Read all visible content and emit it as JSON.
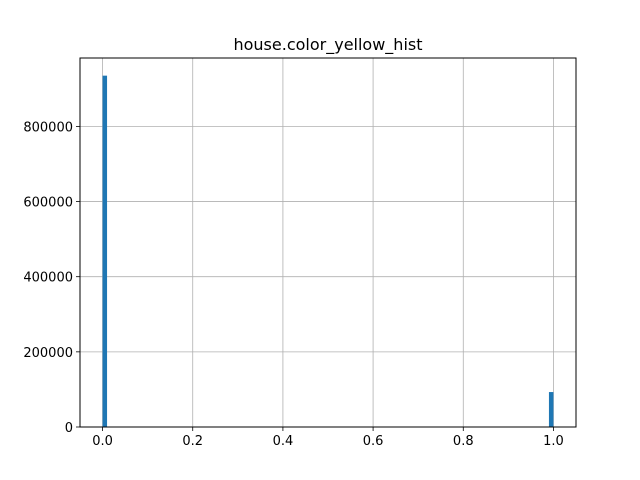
{
  "chart_data": {
    "type": "bar",
    "title": "house.color_yellow_hist",
    "xlabel": "",
    "ylabel": "",
    "xlim": [
      -0.05,
      1.05
    ],
    "ylim": [
      0,
      982000
    ],
    "x_ticks": [
      0.0,
      0.2,
      0.4,
      0.6,
      0.8,
      1.0
    ],
    "x_tick_labels": [
      "0.0",
      "0.2",
      "0.4",
      "0.6",
      "0.8",
      "1.0"
    ],
    "y_ticks": [
      0,
      200000,
      400000,
      600000,
      800000
    ],
    "y_tick_labels": [
      "0",
      "200000",
      "400000",
      "600000",
      "800000"
    ],
    "grid": true,
    "bin_width": 0.01,
    "bars": [
      {
        "x_start": 0.0,
        "x_end": 0.01,
        "value": 935000
      },
      {
        "x_start": 0.99,
        "x_end": 1.0,
        "value": 93000
      }
    ],
    "bar_color": "#1f77b4"
  }
}
